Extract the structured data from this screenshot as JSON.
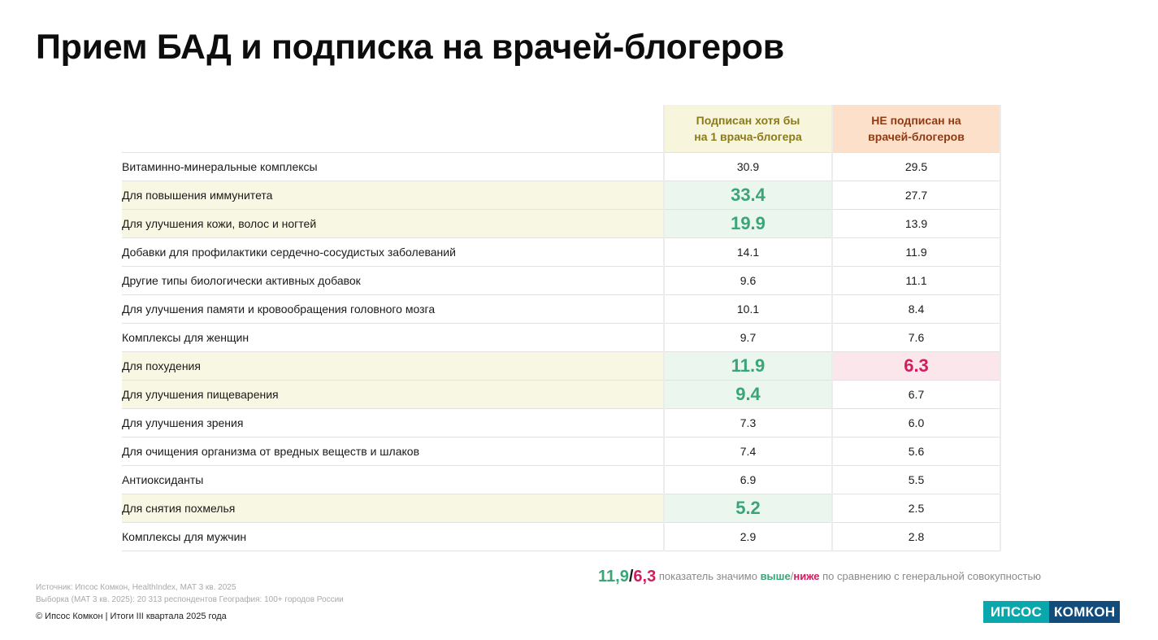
{
  "title": "Прием БАД и подписка на врачей-блогеров",
  "columns": {
    "subscribed": "Подписан хотя бы\nна 1 врача-блогера",
    "not_subscribed": "НЕ подписан на\nврачей-блогеров"
  },
  "rows": [
    {
      "label": "Витаминно-минеральные комплексы",
      "v1": "30.9",
      "v2": "29.5",
      "s1": "",
      "s2": ""
    },
    {
      "label": "Для повышения иммунитета",
      "v1": "33.4",
      "v2": "27.7",
      "s1": "up",
      "s2": ""
    },
    {
      "label": "Для улучшения кожи, волос и ногтей",
      "v1": "19.9",
      "v2": "13.9",
      "s1": "up",
      "s2": ""
    },
    {
      "label": "Добавки для профилактики сердечно-сосудистых заболеваний",
      "v1": "14.1",
      "v2": "11.9",
      "s1": "",
      "s2": ""
    },
    {
      "label": "Другие типы биологически активных добавок",
      "v1": "9.6",
      "v2": "11.1",
      "s1": "",
      "s2": ""
    },
    {
      "label": "Для улучшения памяти и кровообращения головного мозга",
      "v1": "10.1",
      "v2": "8.4",
      "s1": "",
      "s2": ""
    },
    {
      "label": "Комплексы для женщин",
      "v1": "9.7",
      "v2": "7.6",
      "s1": "",
      "s2": ""
    },
    {
      "label": "Для похудения",
      "v1": "11.9",
      "v2": "6.3",
      "s1": "up",
      "s2": "down"
    },
    {
      "label": "Для улучшения пищеварения",
      "v1": "9.4",
      "v2": "6.7",
      "s1": "up",
      "s2": ""
    },
    {
      "label": "Для улучшения зрения",
      "v1": "7.3",
      "v2": "6.0",
      "s1": "",
      "s2": ""
    },
    {
      "label": "Для очищения организма от вредных веществ и шлаков",
      "v1": "7.4",
      "v2": "5.6",
      "s1": "",
      "s2": ""
    },
    {
      "label": "Антиоксиданты",
      "v1": "6.9",
      "v2": "5.5",
      "s1": "",
      "s2": ""
    },
    {
      "label": "Для снятия похмелья",
      "v1": "5.2",
      "v2": "2.5",
      "s1": "up",
      "s2": ""
    },
    {
      "label": "Комплексы для мужчин",
      "v1": "2.9",
      "v2": "2.8",
      "s1": "",
      "s2": ""
    }
  ],
  "legend": {
    "high_example": "11,9",
    "slash": "/",
    "low_example": "6,3",
    "text_before": "показатель значимо",
    "higher": "выше",
    "lower": "ниже",
    "text_after": "по сравнению с генеральной совокупностью"
  },
  "source_line": "Источник: Ипсос Комкон, HealthIndex, MAT 3 кв. 2025",
  "sample_line": "Выборка (MAT 3 кв. 2025): 20 313 респондентов География: 100+ городов России",
  "copyright": "© Ипсос Комкон | Итоги III квартала 2025 года",
  "logo": {
    "left": "ИПСОС",
    "right": "КОМКОН"
  },
  "colors": {
    "higher": "#3aa576",
    "lower": "#cf1d5e",
    "logo_left": "#0aa7ad",
    "logo_right": "#124c7d"
  }
}
